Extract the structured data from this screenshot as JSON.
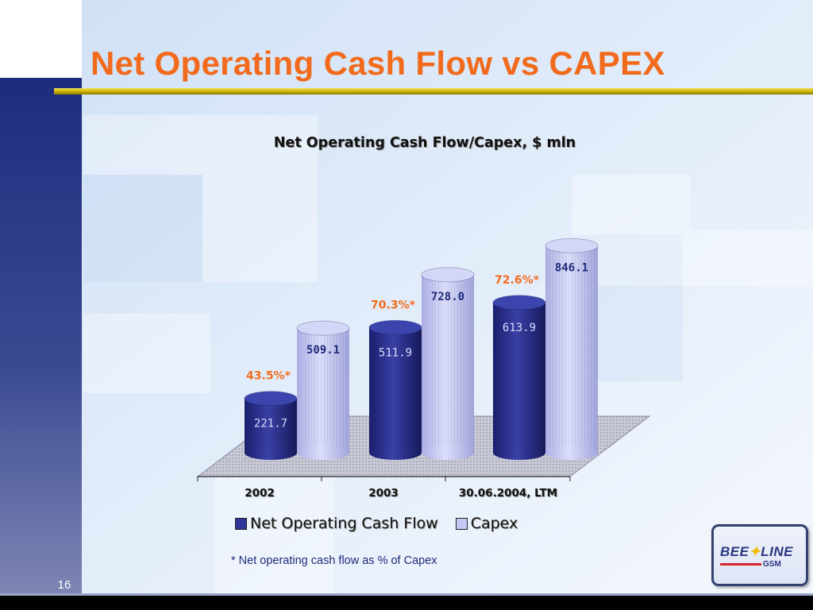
{
  "slide": {
    "title": "Net Operating Cash Flow vs CAPEX",
    "page_number": "16",
    "footnote": "* Net operating cash flow as % of Capex",
    "logo": {
      "text": "BEELINE",
      "subtext": "GSM"
    },
    "colors": {
      "title": "#f26b1d",
      "accent_line": "#d9c400",
      "left_band": "#2a3a8a",
      "bottom_bar": "#000000"
    }
  },
  "chart_data": {
    "type": "bar",
    "style": "3d-cylinder",
    "title": "Net Operating Cash Flow/Capex, $ mln",
    "categories": [
      "2002",
      "2003",
      "30.06.2004, LTM"
    ],
    "series": [
      {
        "name": "Net Operating Cash Flow",
        "values": [
          221.7,
          511.9,
          613.9
        ],
        "labels": [
          "221.7",
          "511.9",
          "613.9"
        ],
        "color": "#2e3596"
      },
      {
        "name": "Capex",
        "values": [
          509.1,
          728.0,
          846.1
        ],
        "labels": [
          "509.1",
          "728.0",
          "846.1"
        ],
        "color": "#c7c9f5"
      }
    ],
    "ratio_labels": [
      "43.5%*",
      "70.3%*",
      "72.6%*"
    ],
    "ratio_color": "#f26b1d",
    "xlabel": "",
    "ylabel": "",
    "legend_position": "bottom",
    "grid": false
  }
}
